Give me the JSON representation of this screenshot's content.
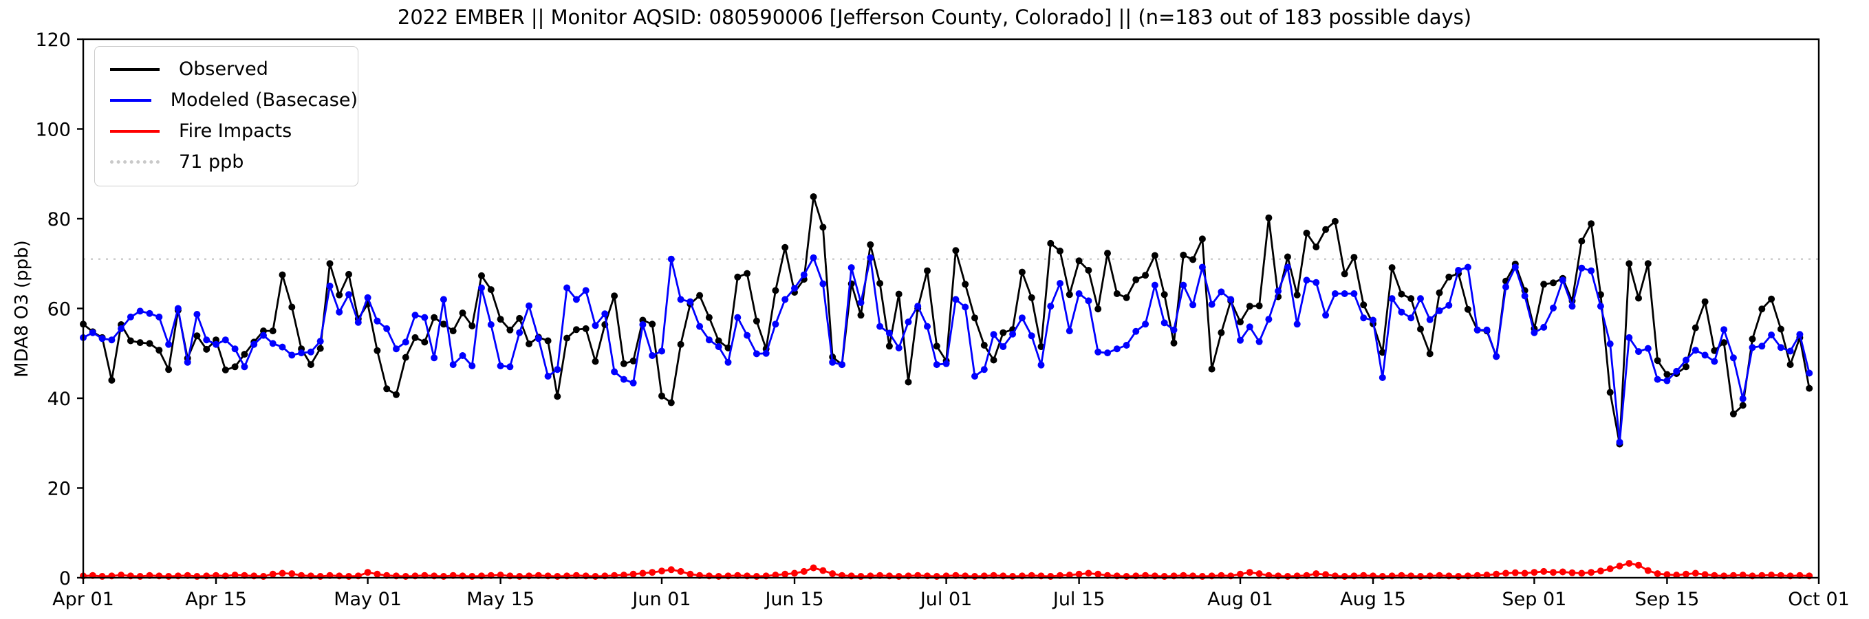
{
  "title": "2022 EMBER || Monitor AQSID: 080590006 [Jefferson County, Colorado] || (n=183 out of 183 possible days)",
  "ylabel": "MDA8 O3 (ppb)",
  "legend": {
    "observed_label": "Observed",
    "modeled_label": "Modeled (Basecase)",
    "fire_label": "Fire Impacts",
    "threshold_label": "71 ppb"
  },
  "colors": {
    "observed": "#000000",
    "modeled": "#0000ff",
    "fire": "#ff0000",
    "threshold": "#c9c9c9",
    "frame": "#000000"
  },
  "chart_data": {
    "type": "line",
    "title": "2022 EMBER || Monitor AQSID: 080590006 [Jefferson County, Colorado] || (n=183 out of 183 possible days)",
    "xlabel": "",
    "ylabel": "MDA8 O3 (ppb)",
    "ylim": [
      0,
      120
    ],
    "yticks": [
      0,
      20,
      40,
      60,
      80,
      100,
      120
    ],
    "grid": false,
    "legend_position": "upper left",
    "threshold_ppb": 71,
    "x_start_date": "2022-04-01",
    "n_days": 183,
    "x_tick_days": [
      0,
      14,
      30,
      44,
      61,
      75,
      91,
      105,
      122,
      136,
      153,
      167,
      183
    ],
    "x_tick_labels": [
      "Apr 01",
      "Apr 15",
      "May 01",
      "May 15",
      "Jun 01",
      "Jun 15",
      "Jul 01",
      "Jul 15",
      "Aug 01",
      "Aug 15",
      "Sep 01",
      "Sep 15",
      "Oct 01"
    ],
    "series": [
      {
        "name": "Observed",
        "color": "#000000",
        "values": [
          56.5,
          54.8,
          53.5,
          44,
          56.4,
          52.8,
          52.4,
          52.2,
          50.7,
          46.4,
          59.6,
          48.9,
          53.9,
          50.9,
          53,
          46.3,
          47,
          49.8,
          52.5,
          55,
          55,
          67.5,
          60.3,
          51,
          47.5,
          51.1,
          70,
          63,
          67.6,
          57.7,
          61,
          50.6,
          42.1,
          40.8,
          49.1,
          53.5,
          52.5,
          58,
          56.5,
          55,
          59,
          56.1,
          67.3,
          64.2,
          57.6,
          55.2,
          57.8,
          52.1,
          53.6,
          52.8,
          40.4,
          53.4,
          55.3,
          55.5,
          48.2,
          56.4,
          62.8,
          47.7,
          48.3,
          57.4,
          56.5,
          40.5,
          39,
          52,
          61,
          62.9,
          58,
          52.8,
          51.2,
          67,
          67.8,
          57.2,
          51,
          64,
          73.6,
          63.6,
          66.5,
          84.9,
          78.1,
          49.2,
          47.5,
          65.5,
          58.5,
          74.2,
          65.6,
          51.6,
          63.2,
          43.6,
          60,
          68.4,
          51.6,
          48.3,
          72.9,
          65.4,
          57.9,
          51.8,
          48.5,
          54.6,
          55.3,
          68.1,
          62.4,
          51.5,
          74.5,
          72.8,
          63.1,
          70.6,
          68.5,
          59.9,
          72.3,
          63.3,
          62.4,
          66.4,
          67.4,
          71.8,
          63.1,
          52.3,
          71.9,
          70.9,
          75.5,
          46.5,
          54.6,
          61.7,
          57,
          60.5,
          60.6,
          80.2,
          62.6,
          71.5,
          63,
          76.8,
          73.7,
          77.6,
          79.4,
          67.7,
          71.4,
          60.8,
          56.6,
          50.2,
          69.1,
          63.2,
          62.2,
          55.4,
          49.9,
          63.5,
          67,
          67.8,
          59.8,
          55.2,
          55,
          49.3,
          66.1,
          69.9,
          64,
          55.5,
          65.4,
          65.7,
          66.7,
          61.7,
          75,
          78.9,
          63.1,
          41.3,
          29.8,
          70,
          62.3,
          70,
          48.4,
          45.3,
          45.5,
          47,
          55.7,
          61.5,
          50.6,
          52.4,
          36.5,
          38.4,
          53.2,
          59.9,
          62.1,
          55.4,
          47.5,
          53.5,
          42.2
        ]
      },
      {
        "name": "Modeled (Basecase)",
        "color": "#0000ff",
        "values": [
          53.5,
          54.6,
          53.3,
          53,
          55.5,
          58.1,
          59.4,
          58.9,
          58.1,
          52,
          60,
          48,
          58.7,
          53,
          52,
          53,
          51,
          47,
          52,
          54,
          52.2,
          51.4,
          49.6,
          50.1,
          50.3,
          52.7,
          65,
          59.2,
          63.1,
          56.9,
          62.4,
          57.2,
          55.5,
          51,
          52.5,
          58.5,
          58,
          49,
          62,
          47.5,
          49.5,
          47.2,
          64.6,
          56.4,
          47.2,
          47,
          54.6,
          60.6,
          53.3,
          44.9,
          46.4,
          64.6,
          62,
          64,
          56.2,
          58.8,
          45.9,
          44.2,
          43.4,
          56.4,
          49.5,
          50.5,
          71,
          62,
          61.5,
          56,
          53,
          51.5,
          48,
          58,
          54,
          49.9,
          50,
          56.5,
          62,
          64.5,
          67.5,
          71.3,
          65.5,
          48,
          47.5,
          69.1,
          61.3,
          71.3,
          56,
          54.5,
          51.2,
          57,
          60.5,
          56,
          47.5,
          47.7,
          62,
          60.3,
          44.9,
          46.4,
          54.2,
          51.5,
          54.3,
          57.9,
          53.9,
          47.4,
          60.5,
          65.6,
          55,
          63.3,
          61.7,
          50.3,
          50.1,
          51,
          51.8,
          54.9,
          56.5,
          65.2,
          56.8,
          55.2,
          65.2,
          60.8,
          69.2,
          60.9,
          63.7,
          62,
          52.9,
          55.9,
          52.6,
          57.6,
          63.9,
          69.2,
          56.5,
          66.3,
          65.8,
          58.5,
          63.3,
          63.3,
          63.3,
          57.9,
          57.4,
          44.6,
          62.2,
          59.2,
          57.9,
          62.2,
          57.5,
          59.5,
          60.7,
          68.5,
          69.2,
          55.2,
          55.2,
          49.3,
          64.8,
          69.2,
          62.8,
          54.6,
          55.8,
          60.1,
          66.3,
          60.5,
          69,
          68.4,
          60.5,
          52.1,
          30.2,
          53.5,
          50.4,
          51.1,
          44.2,
          43.9,
          46,
          48.5,
          50.7,
          49.6,
          48.2,
          55.3,
          49,
          39.9,
          51.3,
          51.6,
          54.1,
          51.3,
          50.5,
          54.2,
          45.6
        ]
      },
      {
        "name": "Fire Impacts",
        "color": "#ff0000",
        "values": [
          0.4,
          0.5,
          0.3,
          0.4,
          0.6,
          0.4,
          0.3,
          0.5,
          0.4,
          0.3,
          0.4,
          0.5,
          0.3,
          0.4,
          0.5,
          0.4,
          0.6,
          0.5,
          0.4,
          0.3,
          0.8,
          1.0,
          0.9,
          0.5,
          0.4,
          0.3,
          0.5,
          0.4,
          0.3,
          0.4,
          1.2,
          0.8,
          0.5,
          0.4,
          0.3,
          0.4,
          0.5,
          0.4,
          0.3,
          0.5,
          0.4,
          0.3,
          0.4,
          0.5,
          0.6,
          0.4,
          0.3,
          0.4,
          0.5,
          0.4,
          0.3,
          0.4,
          0.5,
          0.4,
          0.3,
          0.4,
          0.5,
          0.6,
          0.8,
          1.0,
          1.2,
          1.5,
          1.8,
          1.4,
          0.8,
          0.5,
          0.4,
          0.3,
          0.4,
          0.5,
          0.4,
          0.3,
          0.4,
          0.6,
          0.8,
          1.0,
          1.4,
          2.2,
          1.6,
          0.9,
          0.5,
          0.4,
          0.3,
          0.4,
          0.5,
          0.4,
          0.3,
          0.4,
          0.5,
          0.4,
          0.3,
          0.4,
          0.5,
          0.4,
          0.3,
          0.4,
          0.5,
          0.4,
          0.3,
          0.4,
          0.5,
          0.4,
          0.3,
          0.5,
          0.6,
          0.8,
          1.0,
          0.8,
          0.5,
          0.4,
          0.3,
          0.4,
          0.5,
          0.4,
          0.3,
          0.4,
          0.5,
          0.4,
          0.3,
          0.4,
          0.5,
          0.4,
          0.8,
          1.2,
          0.9,
          0.5,
          0.4,
          0.3,
          0.4,
          0.5,
          0.9,
          0.7,
          0.4,
          0.3,
          0.4,
          0.5,
          0.4,
          0.3,
          0.4,
          0.5,
          0.4,
          0.3,
          0.4,
          0.5,
          0.4,
          0.3,
          0.4,
          0.5,
          0.6,
          0.8,
          1.0,
          1.1,
          1.0,
          1.2,
          1.4,
          1.2,
          1.3,
          1.1,
          1.0,
          1.2,
          1.5,
          2.0,
          2.6,
          3.2,
          2.8,
          1.6,
          0.9,
          0.7,
          0.6,
          0.8,
          1.0,
          0.7,
          0.5,
          0.4,
          0.5,
          0.6,
          0.4,
          0.5,
          0.6,
          0.5,
          0.4,
          0.5,
          0.4
        ]
      }
    ]
  }
}
